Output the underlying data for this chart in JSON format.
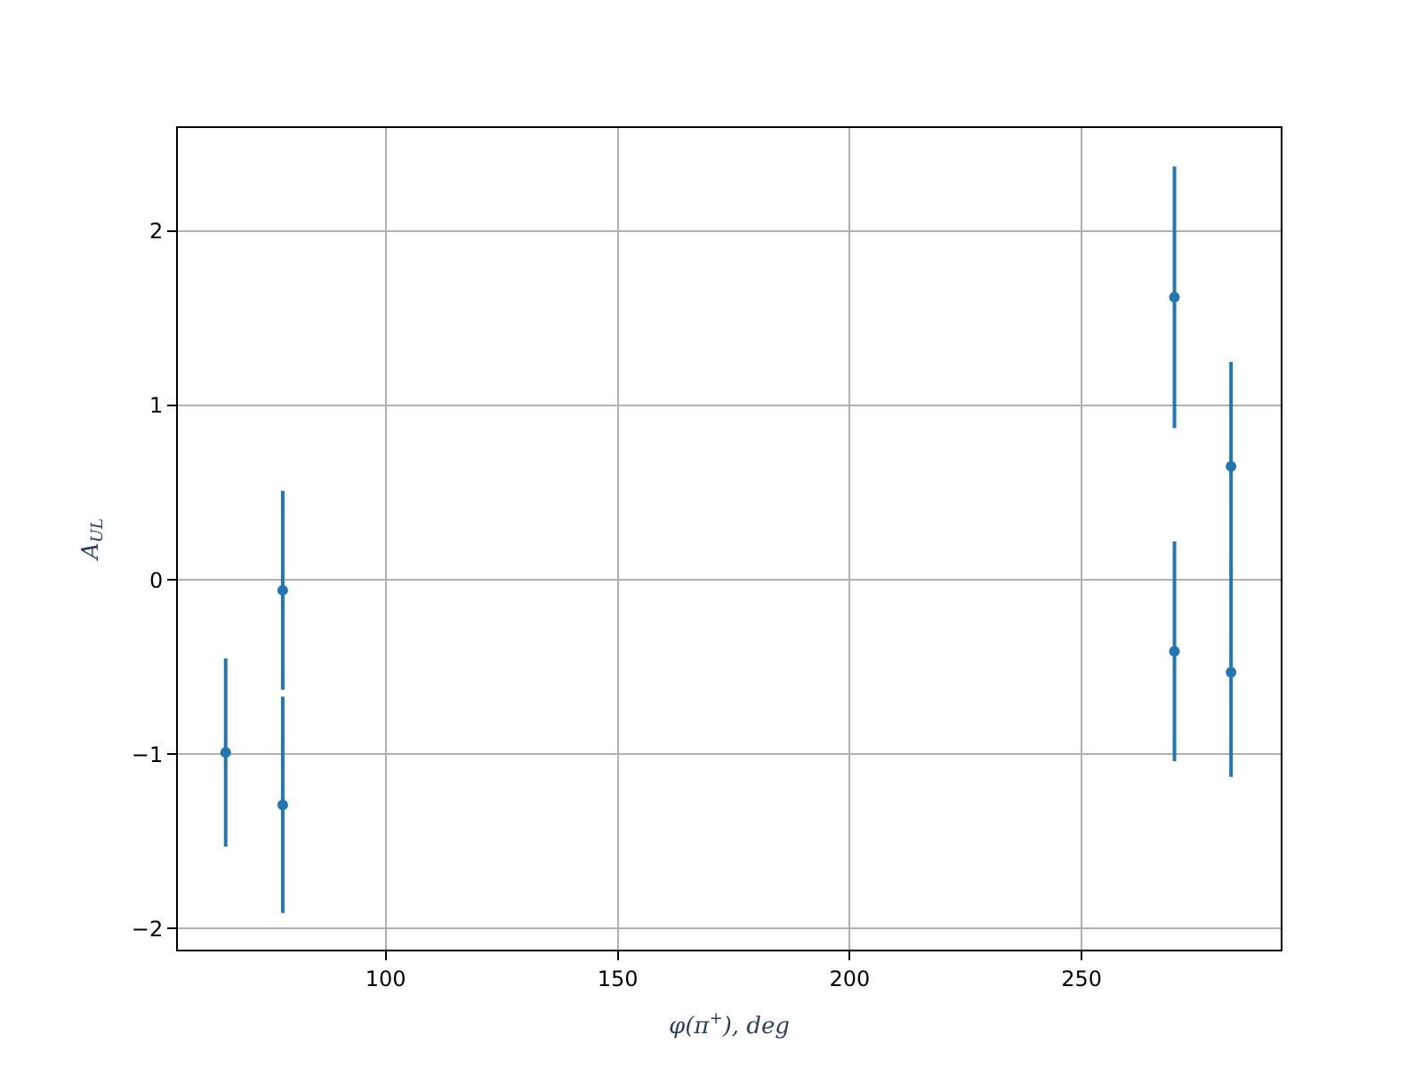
{
  "chart_data": {
    "type": "scatter",
    "xlabel": "φ(π$^{+}$), deg",
    "ylabel": "A$_{UL}$",
    "x": [
      65.5,
      77.8,
      77.8,
      270,
      270,
      282.2
    ],
    "series": [
      {
        "color": "#1f77b4",
        "values": [
          -0.99,
          -0.06,
          -1.29,
          1.62,
          -0.41,
          0.65
        ],
        "errors": [
          0.54,
          0.57,
          0.62,
          0.75,
          0.63,
          0.6
        ]
      },
      {
        "color": "#1f77b4",
        "x": [
          282.2
        ],
        "values": [
          -0.53
        ],
        "errors": [
          0.6
        ]
      }
    ],
    "xlim": [
      55.2,
      292.9
    ],
    "ylim": [
      -2.12,
      2.59
    ],
    "xticks": [
      100,
      150,
      200,
      250
    ],
    "yticks": [
      -2,
      -1,
      0,
      1,
      2
    ],
    "grid": true,
    "marker": "circle"
  }
}
